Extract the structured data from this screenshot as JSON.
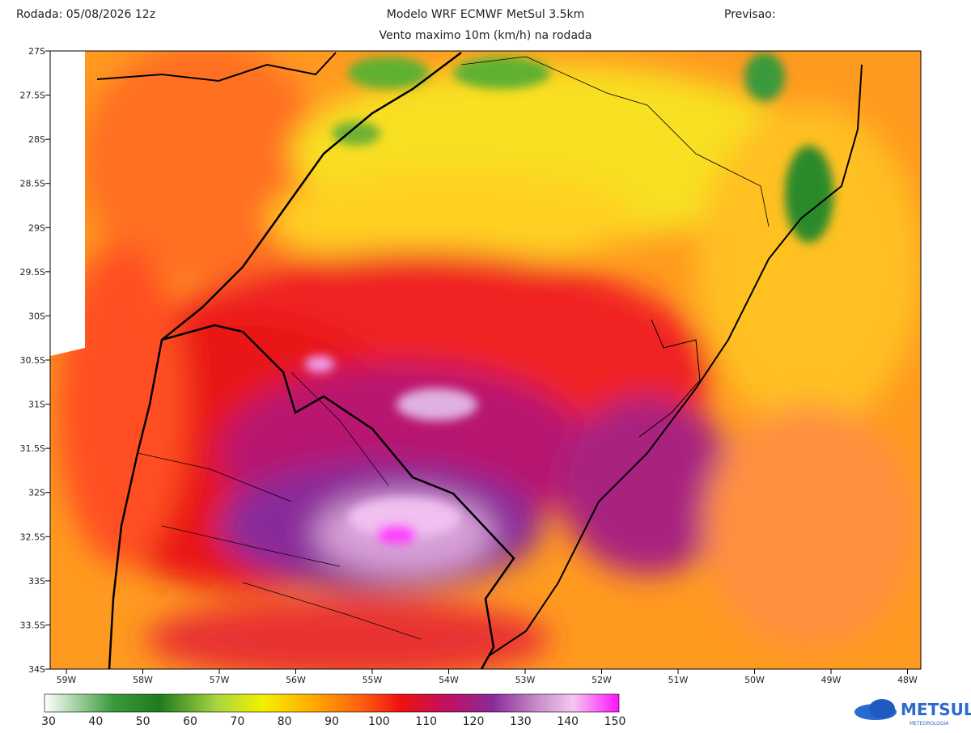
{
  "header": {
    "run": "Rodada: 05/08/2026 12z",
    "title": "Modelo WRF ECMWF MetSul 3.5km",
    "forecast": "Previsao:",
    "subtitle": "Vento maximo 10m (km/h) na rodada"
  },
  "map": {
    "lat_labels": [
      "27S",
      "27.5S",
      "28S",
      "28.5S",
      "29S",
      "29.5S",
      "30S",
      "30.5S",
      "31S",
      "31.5S",
      "32S",
      "32.5S",
      "33S",
      "33.5S",
      "34S"
    ],
    "lon_labels": [
      "59W",
      "58W",
      "57W",
      "56W",
      "55W",
      "54W",
      "53W",
      "52W",
      "51W",
      "50W",
      "49W",
      "48W"
    ]
  },
  "colorbar": {
    "ticks": [
      30,
      40,
      50,
      60,
      70,
      80,
      90,
      100,
      110,
      120,
      130,
      140,
      150
    ]
  },
  "logo": {
    "name": "METSUL",
    "tagline": "METEOROLOGIA"
  }
}
